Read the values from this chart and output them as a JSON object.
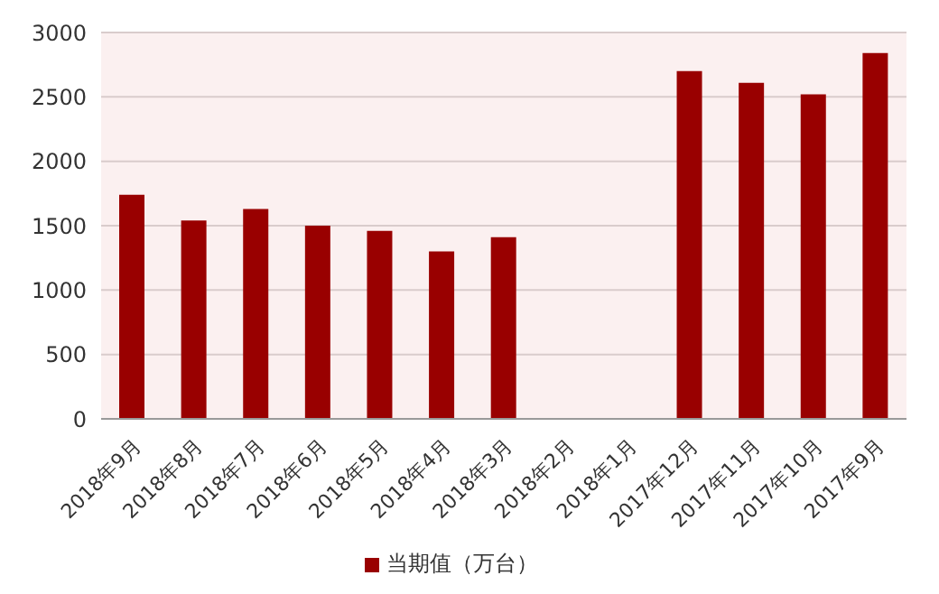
{
  "chart_data": {
    "type": "bar",
    "categories": [
      "2018年9月",
      "2018年8月",
      "2018年7月",
      "2018年6月",
      "2018年5月",
      "2018年4月",
      "2018年3月",
      "2018年2月",
      "2018年1月",
      "2017年12月",
      "2017年11月",
      "2017年10月",
      "2017年9月"
    ],
    "series": [
      {
        "name": "当期值（万台）",
        "color": "#990000",
        "values": [
          1740,
          1540,
          1630,
          1500,
          1460,
          1300,
          1410,
          null,
          null,
          2700,
          2610,
          2520,
          2840
        ]
      }
    ],
    "ylim": [
      0,
      3000
    ],
    "yticks": [
      0,
      500,
      1000,
      1500,
      2000,
      2500,
      3000
    ],
    "grid": "y",
    "legend": "bottom"
  }
}
